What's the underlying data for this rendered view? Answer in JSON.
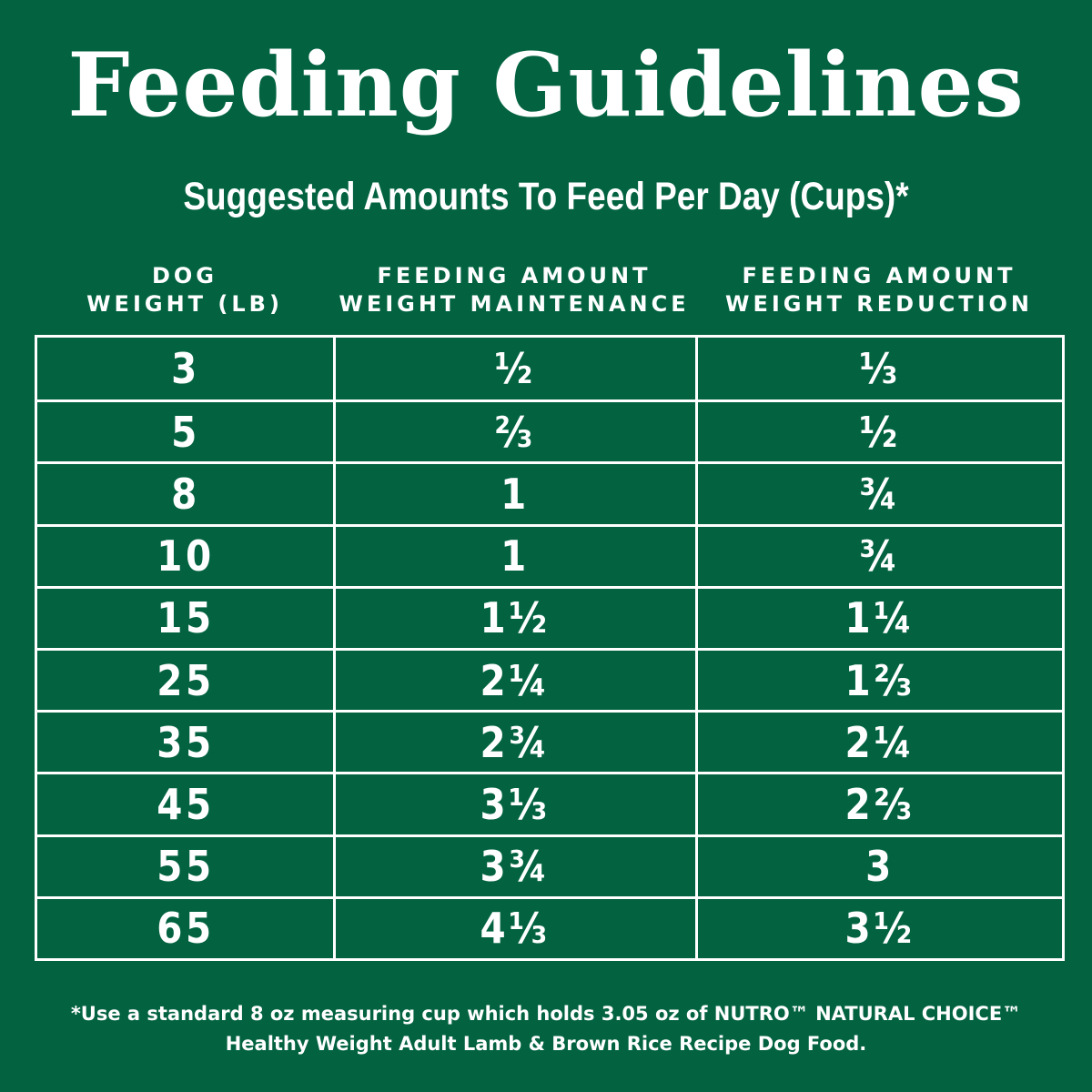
{
  "title": "Feeding Guidelines",
  "subtitle": "Suggested Amounts To Feed Per Day (Cups)*",
  "columns": [
    {
      "line1": "DOG",
      "line2": "WEIGHT (LB)"
    },
    {
      "line1": "FEEDING AMOUNT",
      "line2": "WEIGHT MAINTENANCE"
    },
    {
      "line1": "FEEDING AMOUNT",
      "line2": "WEIGHT REDUCTION"
    }
  ],
  "rows": [
    {
      "weight": "3",
      "maintenance": "½",
      "reduction": "⅓"
    },
    {
      "weight": "5",
      "maintenance": "⅔",
      "reduction": "½"
    },
    {
      "weight": "8",
      "maintenance": "1",
      "reduction": "¾"
    },
    {
      "weight": "10",
      "maintenance": "1",
      "reduction": "¾"
    },
    {
      "weight": "15",
      "maintenance": "1½",
      "reduction": "1¼"
    },
    {
      "weight": "25",
      "maintenance": "2¼",
      "reduction": "1⅔"
    },
    {
      "weight": "35",
      "maintenance": "2¾",
      "reduction": "2¼"
    },
    {
      "weight": "45",
      "maintenance": "3⅓",
      "reduction": "2⅔"
    },
    {
      "weight": "55",
      "maintenance": "3¾",
      "reduction": "3"
    },
    {
      "weight": "65",
      "maintenance": "4⅓",
      "reduction": "3½"
    }
  ],
  "footnote": {
    "line1": "*Use a standard 8 oz measuring cup which holds 3.05 oz of NUTRO™ NATURAL CHOICE™",
    "line2": "Healthy Weight Adult Lamb & Brown Rice Recipe Dog Food."
  },
  "colors": {
    "background": "#036341",
    "text": "#ffffff"
  }
}
